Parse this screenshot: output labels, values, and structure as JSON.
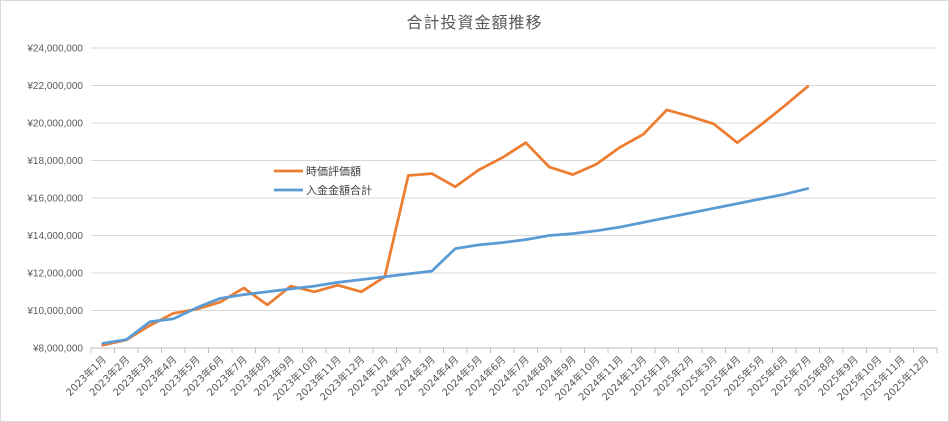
{
  "chart_data": {
    "type": "line",
    "title": "合計投資金額推移",
    "xlabel": "",
    "ylabel": "",
    "ylim": [
      8000000,
      24000000
    ],
    "yticks": [
      "¥8,000,000",
      "¥10,000,000",
      "¥12,000,000",
      "¥14,000,000",
      "¥16,000,000",
      "¥18,000,000",
      "¥20,000,000",
      "¥22,000,000",
      "¥24,000,000"
    ],
    "ytick_values": [
      8000000,
      10000000,
      12000000,
      14000000,
      16000000,
      18000000,
      20000000,
      22000000,
      24000000
    ],
    "grid": true,
    "legend_position": "inside-left",
    "categories": [
      "2023年1月",
      "2023年2月",
      "2023年3月",
      "2023年4月",
      "2023年5月",
      "2023年6月",
      "2023年7月",
      "2023年8月",
      "2023年9月",
      "2023年10月",
      "2023年11月",
      "2023年12月",
      "2024年1月",
      "2024年2月",
      "2024年3月",
      "2024年4月",
      "2024年5月",
      "2024年6月",
      "2024年7月",
      "2024年8月",
      "2024年9月",
      "2024年10月",
      "2024年11月",
      "2024年12月",
      "2025年1月",
      "2025年2月",
      "2025年3月",
      "2025年4月",
      "2025年5月",
      "2025年6月",
      "2025年7月",
      "2025年8月",
      "2025年9月",
      "2025年10月",
      "2025年11月",
      "2025年12月"
    ],
    "series": [
      {
        "name": "時価評価額",
        "color": "#ED7D31",
        "values": [
          8150000,
          8430000,
          9200000,
          9850000,
          10070000,
          10450000,
          11200000,
          10300000,
          11300000,
          11000000,
          11350000,
          11000000,
          11800000,
          17200000,
          17300000,
          16600000,
          17500000,
          18150000,
          18950000,
          17650000,
          17250000,
          17800000,
          18700000,
          19400000,
          20700000,
          20350000,
          19950000,
          18950000,
          19900000,
          20900000,
          21950000,
          null,
          null,
          null,
          null,
          null
        ]
      },
      {
        "name": "入金金額合計",
        "color": "#5B9BD5",
        "values": [
          8250000,
          8450000,
          9400000,
          9550000,
          10150000,
          10650000,
          10850000,
          11000000,
          11150000,
          11300000,
          11500000,
          11650000,
          11800000,
          11950000,
          12100000,
          13300000,
          13500000,
          13620000,
          13780000,
          14000000,
          14100000,
          14250000,
          14450000,
          14700000,
          14950000,
          15200000,
          15450000,
          15700000,
          15950000,
          16200000,
          16500000,
          null,
          null,
          null,
          null,
          null
        ]
      }
    ]
  },
  "legend": {
    "items": [
      {
        "label": "時価評価額",
        "color": "#ED7D31"
      },
      {
        "label": "入金金額合計",
        "color": "#5B9BD5"
      }
    ]
  }
}
